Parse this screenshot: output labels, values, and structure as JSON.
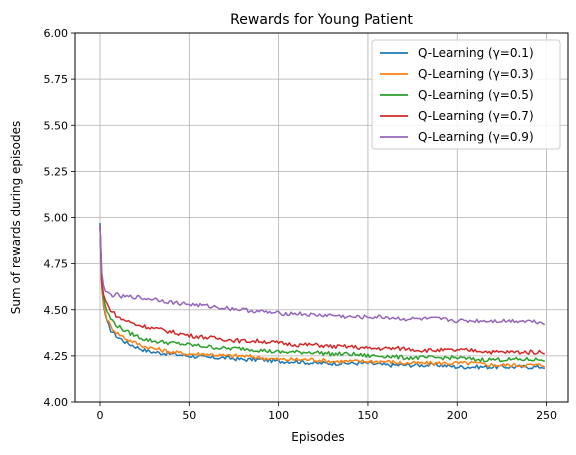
{
  "chart_data": {
    "type": "line",
    "title": "Rewards for Young Patient",
    "xlabel": "Episodes",
    "ylabel": "Sum of rewards during episodes",
    "xlim": [
      -14,
      262
    ],
    "ylim": [
      4.0,
      6.0
    ],
    "xticks": [
      0,
      50,
      100,
      150,
      200,
      250
    ],
    "yticks": [
      4.0,
      4.25,
      4.5,
      4.75,
      5.0,
      5.25,
      5.5,
      5.75,
      6.0
    ],
    "xtick_labels": [
      "0",
      "50",
      "100",
      "150",
      "200",
      "250"
    ],
    "ytick_labels": [
      "4.00",
      "4.25",
      "4.50",
      "4.75",
      "5.00",
      "5.25",
      "5.50",
      "5.75",
      "6.00"
    ],
    "grid": true,
    "legend_position": "top-right",
    "series": [
      {
        "name": "Q-Learning (γ=0.1)",
        "color": "#1f77b4",
        "x": [
          0,
          1,
          2,
          3,
          4,
          5,
          6,
          8,
          10,
          12,
          15,
          20,
          25,
          30,
          40,
          50,
          60,
          70,
          80,
          90,
          100,
          110,
          120,
          130,
          140,
          150,
          160,
          170,
          180,
          190,
          200,
          210,
          220,
          230,
          240,
          249
        ],
        "y": [
          4.97,
          4.62,
          4.52,
          4.47,
          4.43,
          4.41,
          4.39,
          4.37,
          4.35,
          4.34,
          4.32,
          4.3,
          4.28,
          4.27,
          4.26,
          4.25,
          4.24,
          4.24,
          4.23,
          4.23,
          4.22,
          4.22,
          4.21,
          4.21,
          4.21,
          4.21,
          4.2,
          4.2,
          4.2,
          4.2,
          4.19,
          4.19,
          4.19,
          4.19,
          4.19,
          4.19
        ]
      },
      {
        "name": "Q-Learning (γ=0.3)",
        "color": "#ff7f0e",
        "x": [
          0,
          1,
          2,
          3,
          4,
          5,
          6,
          8,
          10,
          12,
          15,
          20,
          25,
          30,
          40,
          50,
          60,
          70,
          80,
          90,
          100,
          110,
          120,
          130,
          140,
          150,
          160,
          170,
          180,
          190,
          200,
          210,
          220,
          230,
          240,
          249
        ],
        "y": [
          4.96,
          4.63,
          4.53,
          4.48,
          4.45,
          4.43,
          4.41,
          4.39,
          4.37,
          4.36,
          4.34,
          4.32,
          4.3,
          4.29,
          4.27,
          4.26,
          4.26,
          4.25,
          4.25,
          4.24,
          4.23,
          4.23,
          4.23,
          4.22,
          4.22,
          4.22,
          4.22,
          4.21,
          4.21,
          4.21,
          4.21,
          4.21,
          4.2,
          4.2,
          4.2,
          4.2
        ]
      },
      {
        "name": "Q-Learning (γ=0.5)",
        "color": "#2ca02c",
        "x": [
          0,
          1,
          2,
          3,
          4,
          5,
          6,
          8,
          10,
          12,
          15,
          20,
          25,
          30,
          40,
          50,
          60,
          70,
          80,
          90,
          100,
          110,
          120,
          130,
          140,
          150,
          160,
          170,
          180,
          190,
          200,
          210,
          220,
          230,
          240,
          249
        ],
        "y": [
          4.96,
          4.64,
          4.56,
          4.52,
          4.49,
          4.47,
          4.45,
          4.43,
          4.41,
          4.4,
          4.38,
          4.36,
          4.34,
          4.33,
          4.32,
          4.31,
          4.3,
          4.29,
          4.29,
          4.28,
          4.27,
          4.27,
          4.27,
          4.26,
          4.26,
          4.25,
          4.25,
          4.24,
          4.24,
          4.24,
          4.24,
          4.23,
          4.23,
          4.23,
          4.23,
          4.23
        ]
      },
      {
        "name": "Q-Learning (γ=0.7)",
        "color": "#d62728",
        "x": [
          0,
          1,
          2,
          3,
          4,
          5,
          6,
          8,
          10,
          12,
          15,
          20,
          25,
          30,
          40,
          50,
          60,
          70,
          80,
          90,
          100,
          110,
          120,
          130,
          140,
          150,
          160,
          170,
          180,
          190,
          200,
          210,
          220,
          230,
          240,
          249
        ],
        "y": [
          4.95,
          4.65,
          4.58,
          4.55,
          4.53,
          4.51,
          4.5,
          4.48,
          4.46,
          4.45,
          4.44,
          4.42,
          4.41,
          4.4,
          4.38,
          4.36,
          4.35,
          4.34,
          4.33,
          4.33,
          4.32,
          4.31,
          4.31,
          4.3,
          4.3,
          4.29,
          4.29,
          4.29,
          4.28,
          4.28,
          4.28,
          4.28,
          4.27,
          4.27,
          4.27,
          4.27
        ]
      },
      {
        "name": "Q-Learning (γ=0.9)",
        "color": "#9467bd",
        "x": [
          0,
          1,
          2,
          3,
          4,
          5,
          6,
          8,
          10,
          12,
          15,
          20,
          25,
          30,
          40,
          50,
          60,
          70,
          80,
          90,
          100,
          110,
          120,
          130,
          140,
          150,
          160,
          170,
          180,
          190,
          200,
          210,
          220,
          230,
          240,
          249
        ],
        "y": [
          4.96,
          4.7,
          4.63,
          4.6,
          4.59,
          4.59,
          4.58,
          4.58,
          4.58,
          4.57,
          4.57,
          4.57,
          4.56,
          4.56,
          4.54,
          4.53,
          4.52,
          4.51,
          4.5,
          4.49,
          4.48,
          4.48,
          4.47,
          4.47,
          4.46,
          4.46,
          4.46,
          4.45,
          4.45,
          4.45,
          4.44,
          4.44,
          4.44,
          4.44,
          4.44,
          4.43
        ]
      }
    ]
  }
}
